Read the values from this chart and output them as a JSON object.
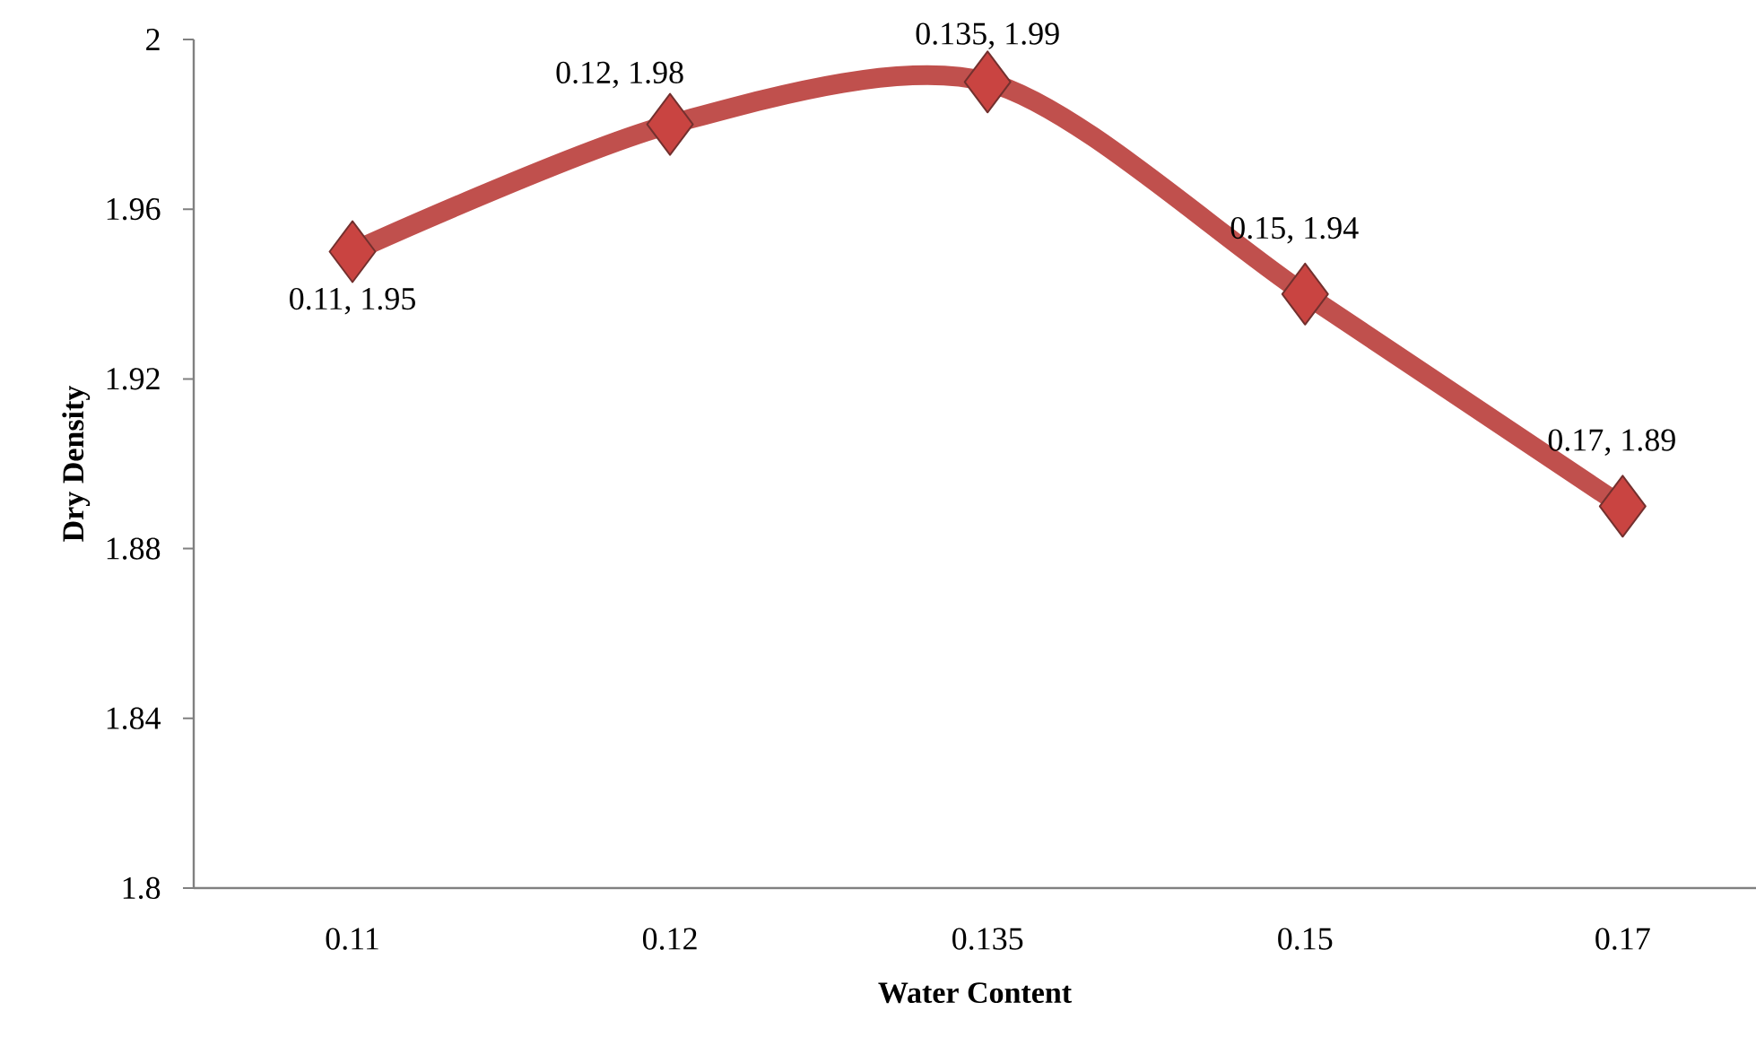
{
  "chart_data": {
    "type": "line",
    "xlabel": "Water Content",
    "ylabel": "Dry Density",
    "categories": [
      "0.11",
      "0.12",
      "0.135",
      "0.15",
      "0.17"
    ],
    "values": [
      1.95,
      1.98,
      1.99,
      1.94,
      1.89
    ],
    "value_labels": [
      "0.11, 1.95",
      "0.12, 1.98",
      "0.135, 1.99",
      "0.15, 1.94",
      "0.17, 1.89"
    ],
    "color": "#c0504d",
    "marker": "diamond",
    "line_style": "solid",
    "grid": false,
    "ylim": [
      1.8,
      2
    ],
    "yticks": [
      1.8,
      1.84,
      1.88,
      1.92,
      1.96,
      2
    ]
  }
}
